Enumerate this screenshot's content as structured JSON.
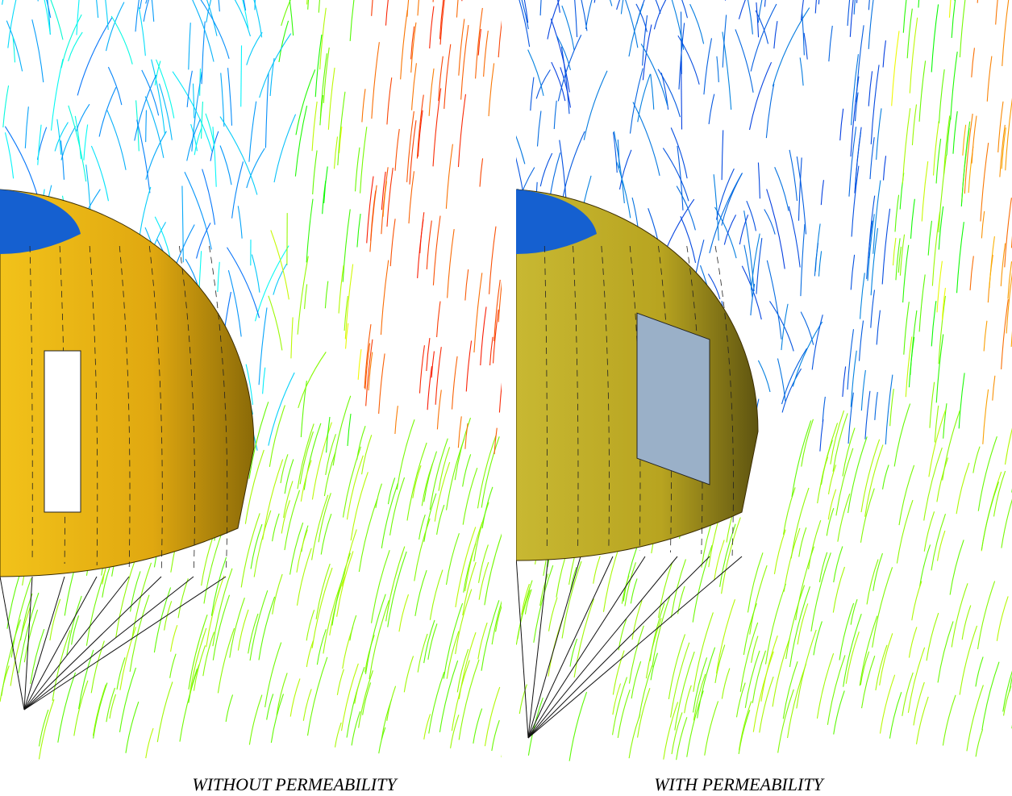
{
  "panels": [
    {
      "caption": "WITHOUT PERMEABILITY"
    },
    {
      "caption": "WITH PERMEABILITY"
    }
  ]
}
